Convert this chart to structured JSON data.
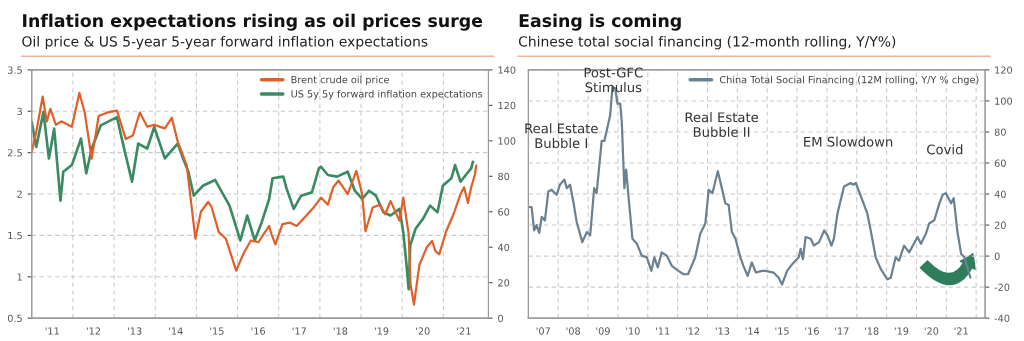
{
  "chart_data": [
    {
      "type": "line",
      "title": "Inflation expectations rising as oil prices surge",
      "subtitle": "Oil price & US 5-year 5-year forward inflation expectations",
      "xlim": [
        "2011-01-01",
        "2022-02-05"
      ],
      "xticks": [
        {
          "value": "2011-07-02",
          "label": "'11"
        },
        {
          "value": "2012-01-01",
          "label": null
        },
        {
          "value": "2012-07-02",
          "label": "'12"
        },
        {
          "value": "2013-01-01",
          "label": null
        },
        {
          "value": "2013-07-02",
          "label": "'13"
        },
        {
          "value": "2014-01-01",
          "label": null
        },
        {
          "value": "2014-07-02",
          "label": "'14"
        },
        {
          "value": "2015-01-01",
          "label": null
        },
        {
          "value": "2015-07-02",
          "label": "'15"
        },
        {
          "value": "2016-01-01",
          "label": null
        },
        {
          "value": "2016-07-02",
          "label": "'16"
        },
        {
          "value": "2017-01-01",
          "label": null
        },
        {
          "value": "2017-07-02",
          "label": "'17"
        },
        {
          "value": "2018-01-01",
          "label": null
        },
        {
          "value": "2018-07-02",
          "label": "'18"
        },
        {
          "value": "2019-01-01",
          "label": null
        },
        {
          "value": "2019-07-02",
          "label": "'19"
        },
        {
          "value": "2020-01-01",
          "label": null
        },
        {
          "value": "2020-07-02",
          "label": "'20"
        },
        {
          "value": "2021-01-01",
          "label": null
        },
        {
          "value": "2021-07-02",
          "label": "'21"
        }
      ],
      "ylim": [
        0.5,
        3.5
      ],
      "yticks": [
        0.5,
        1,
        1.5,
        2,
        2.5,
        3,
        3.5
      ],
      "y2lim": [
        0,
        140
      ],
      "y2ticks": [
        0,
        20,
        40,
        60,
        80,
        100,
        120,
        140
      ],
      "grid": true,
      "legend": "top right",
      "series": [
        {
          "name": "Brent crude oil price",
          "color": "#e0602a",
          "axis": "y2",
          "x": [
            "2011-01-01",
            "2011-02-10",
            "2011-04-08",
            "2011-05-14",
            "2011-06-16",
            "2011-08-03",
            "2011-09-20",
            "2011-12-23",
            "2012-02-28",
            "2012-04-15",
            "2012-06-16",
            "2012-08-17",
            "2012-11-03",
            "2013-01-26",
            "2013-04-15",
            "2013-06-16",
            "2013-08-17",
            "2013-10-22",
            "2013-12-23",
            "2014-03-27",
            "2014-05-28",
            "2014-07-19",
            "2014-10-08",
            "2014-12-23",
            "2015-02-10",
            "2015-04-15",
            "2015-05-14",
            "2015-07-19",
            "2015-09-20",
            "2015-12-20",
            "2016-02-28",
            "2016-04-29",
            "2016-07-04",
            "2016-10-08",
            "2016-10-29",
            "2016-12-02",
            "2017-02-03",
            "2017-04-08",
            "2017-06-09",
            "2017-11-07",
            "2018-01-11",
            "2018-03-13",
            "2018-04-29",
            "2018-06-16",
            "2018-09-05",
            "2018-11-21",
            "2019-01-11",
            "2019-02-10",
            "2019-04-15",
            "2019-06-16",
            "2019-08-03",
            "2019-09-20",
            "2019-12-09",
            "2020-01-11",
            "2020-02-28",
            "2020-03-16",
            "2020-04-15",
            "2020-06-02",
            "2020-08-07",
            "2020-09-23",
            "2020-10-22",
            "2020-11-25",
            "2021-01-26",
            "2021-04-01",
            "2021-06-02",
            "2021-07-04",
            "2021-08-07",
            "2021-09-05",
            "2021-10-08",
            "2021-10-19"
          ],
          "values": [
            93.8,
            105,
            125,
            111,
            118,
            109,
            111,
            108,
            127,
            116,
            90,
            114,
            116,
            117,
            101,
            103,
            116,
            108,
            109,
            107,
            113,
            99.7,
            86,
            44.8,
            60,
            65.5,
            63,
            48.5,
            44.8,
            26.8,
            37,
            43.8,
            42.8,
            52,
            47.3,
            41.6,
            53,
            53.9,
            52,
            62.4,
            68,
            64,
            73.8,
            77.6,
            70,
            83,
            70,
            49,
            62.4,
            64,
            58.6,
            66,
            55,
            68,
            47.3,
            18.9,
            7.6,
            30,
            40,
            43.5,
            37.8,
            36,
            49,
            58.6,
            70,
            73.8,
            65,
            73.8,
            81,
            86
          ]
        },
        {
          "name": "US 5y 5y forward inflation expectations",
          "color": "#3a8a64",
          "x": [
            "2011-01-01",
            "2011-02-10",
            "2011-04-15",
            "2011-06-02",
            "2011-07-19",
            "2011-09-13",
            "2011-10-08",
            "2011-12-23",
            "2012-03-13",
            "2012-04-29",
            "2012-06-16",
            "2012-09-05",
            "2013-01-26",
            "2013-03-27",
            "2013-06-09",
            "2013-08-03",
            "2013-10-22",
            "2013-12-23",
            "2014-03-27",
            "2014-07-19",
            "2014-09-05",
            "2014-10-22",
            "2014-12-09",
            "2015-02-28",
            "2015-06-16",
            "2015-10-22",
            "2016-01-26",
            "2016-03-27",
            "2016-06-02",
            "2016-08-03",
            "2016-10-08",
            "2016-11-07",
            "2017-02-10",
            "2017-03-13",
            "2017-05-14",
            "2017-07-19",
            "2017-10-22",
            "2017-12-23",
            "2018-01-11",
            "2018-03-13",
            "2018-06-02",
            "2018-09-05",
            "2018-11-07",
            "2019-01-11",
            "2019-03-13",
            "2019-05-14",
            "2019-07-19",
            "2019-09-20",
            "2019-12-09",
            "2020-01-11",
            "2020-02-10",
            "2020-02-28",
            "2020-03-13",
            "2020-04-29",
            "2020-07-04",
            "2020-09-05",
            "2020-11-10",
            "2020-12-27",
            "2021-03-13",
            "2021-04-15",
            "2021-06-02",
            "2021-07-19",
            "2021-09-05",
            "2021-09-20"
          ],
          "values": [
            2.87,
            2.57,
            2.99,
            2.43,
            2.79,
            1.92,
            2.27,
            2.35,
            2.67,
            2.25,
            2.55,
            2.83,
            2.93,
            2.57,
            2.15,
            2.61,
            2.55,
            2.81,
            2.43,
            2.61,
            2.43,
            2.27,
            1.98,
            2.1,
            2.17,
            1.86,
            1.44,
            1.74,
            1.44,
            1.66,
            1.94,
            2.19,
            2.21,
            2.06,
            1.82,
            1.98,
            2.02,
            2.31,
            2.33,
            2.23,
            2.21,
            2.27,
            2.04,
            1.94,
            2.04,
            1.98,
            1.78,
            1.74,
            1.82,
            1.54,
            1.13,
            0.85,
            1.38,
            1.58,
            1.7,
            1.86,
            1.78,
            2.1,
            2.19,
            2.35,
            2.15,
            2.23,
            2.31,
            2.39
          ]
        }
      ]
    },
    {
      "type": "line",
      "title": "Easing is coming",
      "subtitle": "Chinese total social financing (12-month rolling, Y/Y%)",
      "xlim": [
        "2007-01-01",
        "2022-04-20"
      ],
      "xticks": [
        {
          "value": "2007-07-02",
          "label": "'07"
        },
        {
          "value": "2008-01-01",
          "label": null
        },
        {
          "value": "2008-07-02",
          "label": "'08"
        },
        {
          "value": "2009-01-01",
          "label": null
        },
        {
          "value": "2009-07-02",
          "label": "'09"
        },
        {
          "value": "2010-01-01",
          "label": null
        },
        {
          "value": "2010-07-02",
          "label": "'10"
        },
        {
          "value": "2011-01-01",
          "label": null
        },
        {
          "value": "2011-07-02",
          "label": "'11"
        },
        {
          "value": "2012-01-01",
          "label": null
        },
        {
          "value": "2012-07-02",
          "label": "'12"
        },
        {
          "value": "2013-01-01",
          "label": null
        },
        {
          "value": "2013-07-02",
          "label": "'13"
        },
        {
          "value": "2014-01-01",
          "label": null
        },
        {
          "value": "2014-07-02",
          "label": "'14"
        },
        {
          "value": "2015-01-01",
          "label": null
        },
        {
          "value": "2015-07-02",
          "label": "'15"
        },
        {
          "value": "2016-01-01",
          "label": null
        },
        {
          "value": "2016-07-02",
          "label": "'16"
        },
        {
          "value": "2017-01-01",
          "label": null
        },
        {
          "value": "2017-07-02",
          "label": "'17"
        },
        {
          "value": "2018-01-01",
          "label": null
        },
        {
          "value": "2018-07-02",
          "label": "'18"
        },
        {
          "value": "2019-01-01",
          "label": null
        },
        {
          "value": "2019-07-02",
          "label": "'19"
        },
        {
          "value": "2020-01-01",
          "label": null
        },
        {
          "value": "2020-07-02",
          "label": "'20"
        },
        {
          "value": "2021-01-01",
          "label": null
        },
        {
          "value": "2021-07-02",
          "label": "'21"
        },
        {
          "value": "2022-01-01",
          "label": null
        }
      ],
      "y2lim": [
        -40,
        120
      ],
      "y2ticks": [
        -40,
        -20,
        0,
        20,
        40,
        60,
        80,
        100,
        120
      ],
      "grid": true,
      "legend": "top right",
      "annotations": [
        "Real Estate\nBubble I",
        "Post-GFC\nStimulus",
        "Real Estate\nBubble II",
        "EM Slowdown",
        "Covid"
      ],
      "series": [
        {
          "name": "China Total Social Financing (12M rolling, Y/Y % chge)",
          "color": "#6b8190",
          "axis": "y2",
          "x": [
            "2007-01-01",
            "2007-02-10",
            "2007-03-13",
            "2007-04-11",
            "2007-05-14",
            "2007-06-13",
            "2007-07-22",
            "2007-09-02",
            "2007-10-11",
            "2007-12-13",
            "2008-01-22",
            "2008-03-16",
            "2008-04-15",
            "2008-05-25",
            "2008-07-04",
            "2008-08-14",
            "2008-10-22",
            "2008-12-16",
            "2009-01-26",
            "2009-03-16",
            "2009-04-15",
            "2009-06-16",
            "2009-07-19",
            "2009-09-27",
            "2009-10-26",
            "2009-11-28",
            "2009-12-27",
            "2010-01-29",
            "2010-02-17",
            "2010-03-20",
            "2010-04-11",
            "2010-05-10",
            "2010-06-27",
            "2010-08-21",
            "2010-10-19",
            "2010-12-20",
            "2011-02-14",
            "2011-03-23",
            "2011-05-03",
            "2011-06-20",
            "2011-08-21",
            "2011-10-22",
            "2012-01-11",
            "2012-03-13",
            "2012-05-07",
            "2012-08-03",
            "2012-10-04",
            "2012-12-05",
            "2013-01-15",
            "2013-03-02",
            "2013-05-07",
            "2013-06-05",
            "2013-08-07",
            "2013-09-16",
            "2013-10-26",
            "2013-12-09",
            "2014-02-07",
            "2014-03-16",
            "2014-05-07",
            "2014-06-27",
            "2014-08-17",
            "2014-10-29",
            "2014-12-09",
            "2015-03-20",
            "2015-05-21",
            "2015-07-01",
            "2015-09-02",
            "2015-11-03",
            "2015-12-13",
            "2016-01-22",
            "2016-02-14",
            "2016-03-13",
            "2016-04-15",
            "2016-06-16",
            "2016-07-26",
            "2016-09-27",
            "2016-11-28",
            "2017-01-08",
            "2017-02-25",
            "2017-03-27",
            "2017-05-10",
            "2017-07-29",
            "2017-10-19",
            "2017-11-21",
            "2017-12-20",
            "2018-02-21",
            "2018-05-10",
            "2018-06-20",
            "2018-08-21",
            "2018-10-22",
            "2019-01-11",
            "2019-02-21",
            "2019-03-23",
            "2019-04-22",
            "2019-06-02",
            "2019-08-03",
            "2019-10-04",
            "2020-01-15",
            "2020-02-25",
            "2020-04-26",
            "2020-06-05",
            "2020-08-07",
            "2020-10-08",
            "2020-11-17",
            "2020-12-27",
            "2021-02-28",
            "2021-04-01",
            "2021-05-17",
            "2021-07-01",
            "2021-08-10",
            "2021-10-22"
          ],
          "values": [
            31.8,
            31.4,
            16.6,
            20,
            15,
            25.3,
            23,
            41.6,
            42.7,
            39.5,
            46,
            49.3,
            43.8,
            46,
            35,
            22,
            9,
            15.5,
            13.3,
            43.8,
            40.5,
            74.3,
            74.3,
            90.6,
            109,
            108,
            98.2,
            98.2,
            86.3,
            43.8,
            55.8,
            38.4,
            11.2,
            7.9,
            0.3,
            -0.8,
            -9.5,
            -0.8,
            -7.3,
            2.4,
            0.3,
            -6.3,
            -9.5,
            -11.7,
            -11.7,
            -0.8,
            14.4,
            21,
            42.7,
            40.5,
            54.7,
            48.2,
            34,
            33,
            15.5,
            11.2,
            -0.8,
            -6.3,
            -12.8,
            -4.1,
            -10.6,
            -9.5,
            -9.5,
            -10.6,
            -13.9,
            -18.3,
            -9.5,
            -5.2,
            -3,
            -0.8,
            4.6,
            -1.9,
            12.3,
            11.2,
            6.8,
            9,
            16.6,
            13.3,
            6.8,
            11.2,
            27.5,
            44.9,
            47.1,
            46,
            47.1,
            38.4,
            27.5,
            16.6,
            -0.8,
            -8.4,
            -15,
            -13.9,
            -7.3,
            -0.8,
            -3,
            6.8,
            2.4,
            12.3,
            7.9,
            14.4,
            21,
            23.1,
            34,
            39.5,
            40.5,
            34,
            37.3,
            15.5,
            1.4,
            -0.8,
            -13.9
          ]
        }
      ]
    }
  ]
}
